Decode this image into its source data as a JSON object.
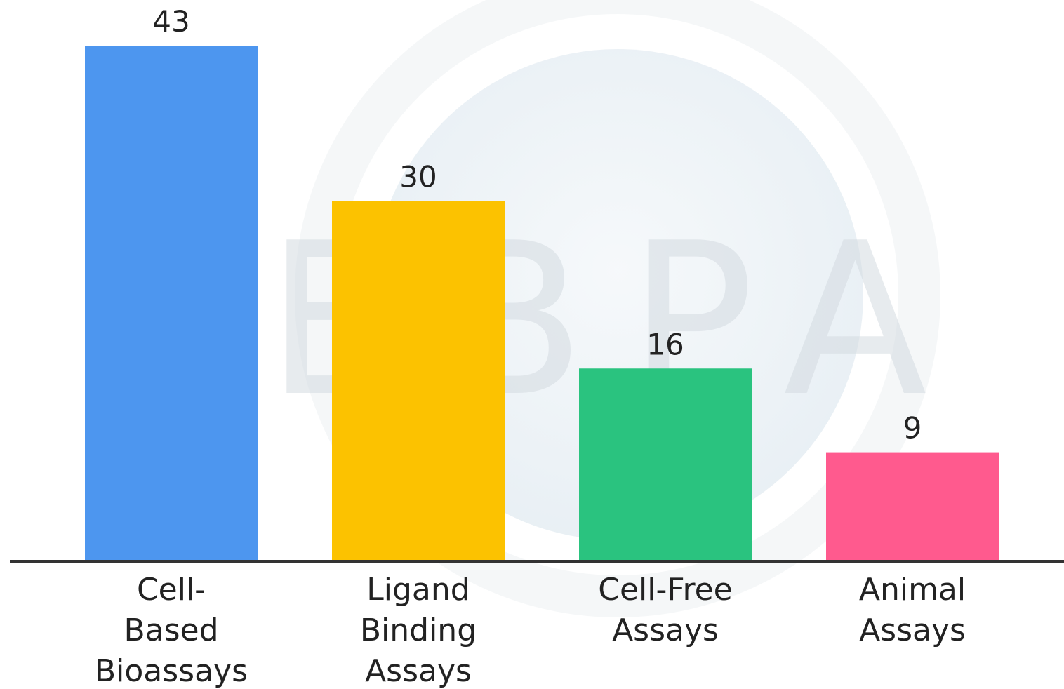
{
  "chart_data": {
    "type": "bar",
    "categories": [
      "Cell-Based Bioassays",
      "Ligand Binding Assays",
      "Cell-Free Assays",
      "Animal Assays"
    ],
    "values": [
      43,
      30,
      16,
      9
    ],
    "colors": [
      "#4d96ef",
      "#fcc200",
      "#2ac37f",
      "#ff5a8e"
    ],
    "watermark": "EBPA"
  }
}
